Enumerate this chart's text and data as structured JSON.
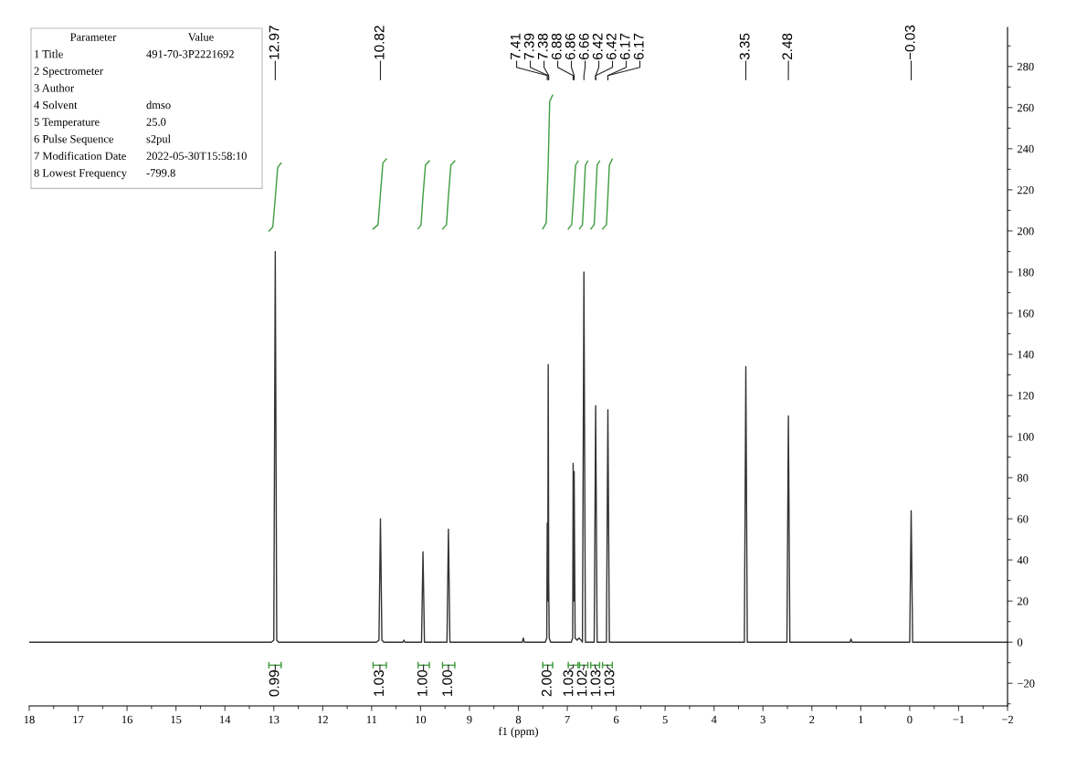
{
  "chart_data": {
    "type": "line",
    "xlabel": "f1 (ppm)",
    "xlim": [
      18,
      -2
    ],
    "xticks": [
      18,
      17,
      16,
      15,
      14,
      13,
      12,
      11,
      10,
      9,
      8,
      7,
      6,
      5,
      4,
      3,
      2,
      1,
      0,
      {
        "value": -1,
        "label": "−1"
      },
      {
        "value": -2,
        "label": "−2"
      }
    ],
    "ylim": [
      -31,
      299
    ],
    "yticks": [
      {
        "value": -20,
        "label": "−20"
      },
      0,
      20,
      40,
      60,
      80,
      100,
      120,
      140,
      160,
      180,
      200,
      220,
      240,
      260,
      280
    ],
    "series": [
      {
        "color": "#333333",
        "x": [
          18,
          13.05,
          13.0,
          12.97,
          12.94,
          12.9,
          10.9,
          10.85,
          10.82,
          10.79,
          10.75,
          10.36,
          10.34,
          10.32,
          9.98,
          9.95,
          9.92,
          9.46,
          9.43,
          9.4,
          7.92,
          7.9,
          7.88,
          7.45,
          7.42,
          7.41,
          7.4,
          7.39,
          7.38,
          7.37,
          7.34,
          6.92,
          6.89,
          6.88,
          6.87,
          6.86,
          6.84,
          6.8,
          6.76,
          6.72,
          6.69,
          6.66,
          6.63,
          6.45,
          6.42,
          6.39,
          6.2,
          6.17,
          6.14,
          3.38,
          3.35,
          3.32,
          2.51,
          2.48,
          2.45,
          1.22,
          1.2,
          1.18,
          0.0,
          -0.03,
          -0.06,
          -2
        ],
        "values": [
          0,
          0,
          1,
          190,
          1,
          0,
          0,
          1,
          60,
          1,
          0,
          0,
          1,
          0,
          0,
          44,
          0,
          0,
          55,
          0,
          0,
          2,
          0,
          0,
          2,
          58,
          20,
          135,
          30,
          2,
          0,
          0,
          2,
          87,
          20,
          83,
          2,
          1,
          2,
          1,
          0,
          180,
          0,
          0,
          115,
          0,
          0,
          113,
          0,
          0,
          134,
          0,
          0,
          110,
          0,
          0,
          1.5,
          0,
          0,
          64,
          0,
          0
        ]
      },
      {
        "color": "#3f9c3f",
        "x": [
          13.1,
          13.02,
          12.97,
          12.92,
          12.85
        ],
        "values": [
          200,
          202,
          216,
          231,
          233
        ]
      },
      {
        "color": "#3f9c3f",
        "x": [
          10.97,
          10.87,
          10.82,
          10.77,
          10.7
        ],
        "values": [
          201,
          203,
          218,
          233,
          235
        ]
      },
      {
        "color": "#3f9c3f",
        "x": [
          10.05,
          9.99,
          9.95,
          9.9,
          9.82
        ],
        "values": [
          201,
          203,
          217,
          232,
          234
        ]
      },
      {
        "color": "#3f9c3f",
        "x": [
          9.55,
          9.47,
          9.43,
          9.38,
          9.3
        ],
        "values": [
          201,
          203,
          217,
          232,
          234
        ]
      },
      {
        "color": "#3f9c3f",
        "x": [
          7.5,
          7.43,
          7.39,
          7.36,
          7.3
        ],
        "values": [
          201,
          204,
          233,
          263,
          266
        ]
      },
      {
        "color": "#3f9c3f",
        "x": [
          6.98,
          6.91,
          6.87,
          6.83,
          6.78
        ],
        "values": [
          201,
          203,
          217,
          232,
          234
        ]
      },
      {
        "color": "#3f9c3f",
        "x": [
          6.75,
          6.69,
          6.66,
          6.63,
          6.58
        ],
        "values": [
          201,
          203,
          217,
          232,
          234
        ]
      },
      {
        "color": "#3f9c3f",
        "x": [
          6.52,
          6.45,
          6.42,
          6.39,
          6.34
        ],
        "values": [
          201,
          203,
          217,
          232,
          234
        ]
      },
      {
        "color": "#3f9c3f",
        "x": [
          6.28,
          6.2,
          6.17,
          6.14,
          6.08
        ],
        "values": [
          201,
          203,
          217,
          232,
          235
        ]
      }
    ],
    "annotations": [
      {
        "text": "12.97",
        "x": 12.97
      },
      {
        "text": "10.82",
        "x": 10.82
      },
      {
        "text": "7.41",
        "x": 7.41
      },
      {
        "text": "7.39",
        "x": 7.39
      },
      {
        "text": "7.38",
        "x": 7.38
      },
      {
        "text": "6.88",
        "x": 6.88
      },
      {
        "text": "6.86",
        "x": 6.86
      },
      {
        "text": "6.66",
        "x": 6.66
      },
      {
        "text": "6.42",
        "x": 6.42
      },
      {
        "text": "6.42",
        "x": 6.42
      },
      {
        "text": "6.17",
        "x": 6.17
      },
      {
        "text": "6.17",
        "x": 6.17
      },
      {
        "text": "3.35",
        "x": 3.35
      },
      {
        "text": "2.48",
        "x": 2.48
      },
      {
        "text": "−0.03",
        "x": -0.03
      },
      {
        "text": "0.99",
        "x": 12.97
      },
      {
        "text": "1.03",
        "x": 10.83
      },
      {
        "text": "1.00",
        "x": 9.94
      },
      {
        "text": "1.00",
        "x": 9.43
      },
      {
        "text": "2.00",
        "x": 7.4
      },
      {
        "text": "1.03",
        "x": 6.88
      },
      {
        "text": "1.02",
        "x": 6.66
      },
      {
        "text": "1.03",
        "x": 6.43
      },
      {
        "text": "1.03",
        "x": 6.18
      },
      "Parameter\tValue",
      "1 Title\t491-70-3P2221692",
      "2 Spectrometer",
      "3 Author",
      "4 Solvent\tdmso",
      "5 Temperature\t25.0",
      "6 Pulse Sequence\ts2pul",
      "7 Modification Date\t2022-05-30T15:58:10",
      "8 Lowest Frequency\t-799.8"
    ]
  }
}
